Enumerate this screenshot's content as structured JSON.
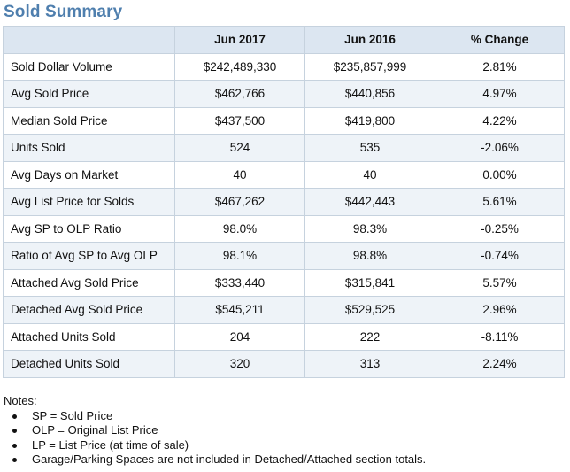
{
  "title": "Sold Summary",
  "table": {
    "headers": [
      "",
      "Jun 2017",
      "Jun 2016",
      "% Change"
    ],
    "rows": [
      [
        "Sold Dollar Volume",
        "$242,489,330",
        "$235,857,999",
        "2.81%"
      ],
      [
        "Avg Sold Price",
        "$462,766",
        "$440,856",
        "4.97%"
      ],
      [
        "Median Sold Price",
        "$437,500",
        "$419,800",
        "4.22%"
      ],
      [
        "Units Sold",
        "524",
        "535",
        "-2.06%"
      ],
      [
        "Avg Days on Market",
        "40",
        "40",
        "0.00%"
      ],
      [
        "Avg List Price for Solds",
        "$467,262",
        "$442,443",
        "5.61%"
      ],
      [
        "Avg SP to OLP Ratio",
        "98.0%",
        "98.3%",
        "-0.25%"
      ],
      [
        "Ratio of Avg SP to Avg OLP",
        "98.1%",
        "98.8%",
        "-0.74%"
      ],
      [
        "Attached Avg Sold Price",
        "$333,440",
        "$315,841",
        "5.57%"
      ],
      [
        "Detached Avg Sold Price",
        "$545,211",
        "$529,525",
        "2.96%"
      ],
      [
        "Attached Units Sold",
        "204",
        "222",
        "-8.11%"
      ],
      [
        "Detached Units Sold",
        "320",
        "313",
        "2.24%"
      ]
    ]
  },
  "notes": {
    "heading": "Notes:",
    "items": [
      "SP = Sold Price",
      "OLP = Original List Price",
      "LP = List Price (at time of sale)",
      "Garage/Parking Spaces are not included in Detached/Attached section totals."
    ]
  },
  "colors": {
    "title": "#4f7fae",
    "header_bg": "#dce6f1",
    "alt_row_bg": "#eef3f8",
    "border": "#c6d2de"
  }
}
